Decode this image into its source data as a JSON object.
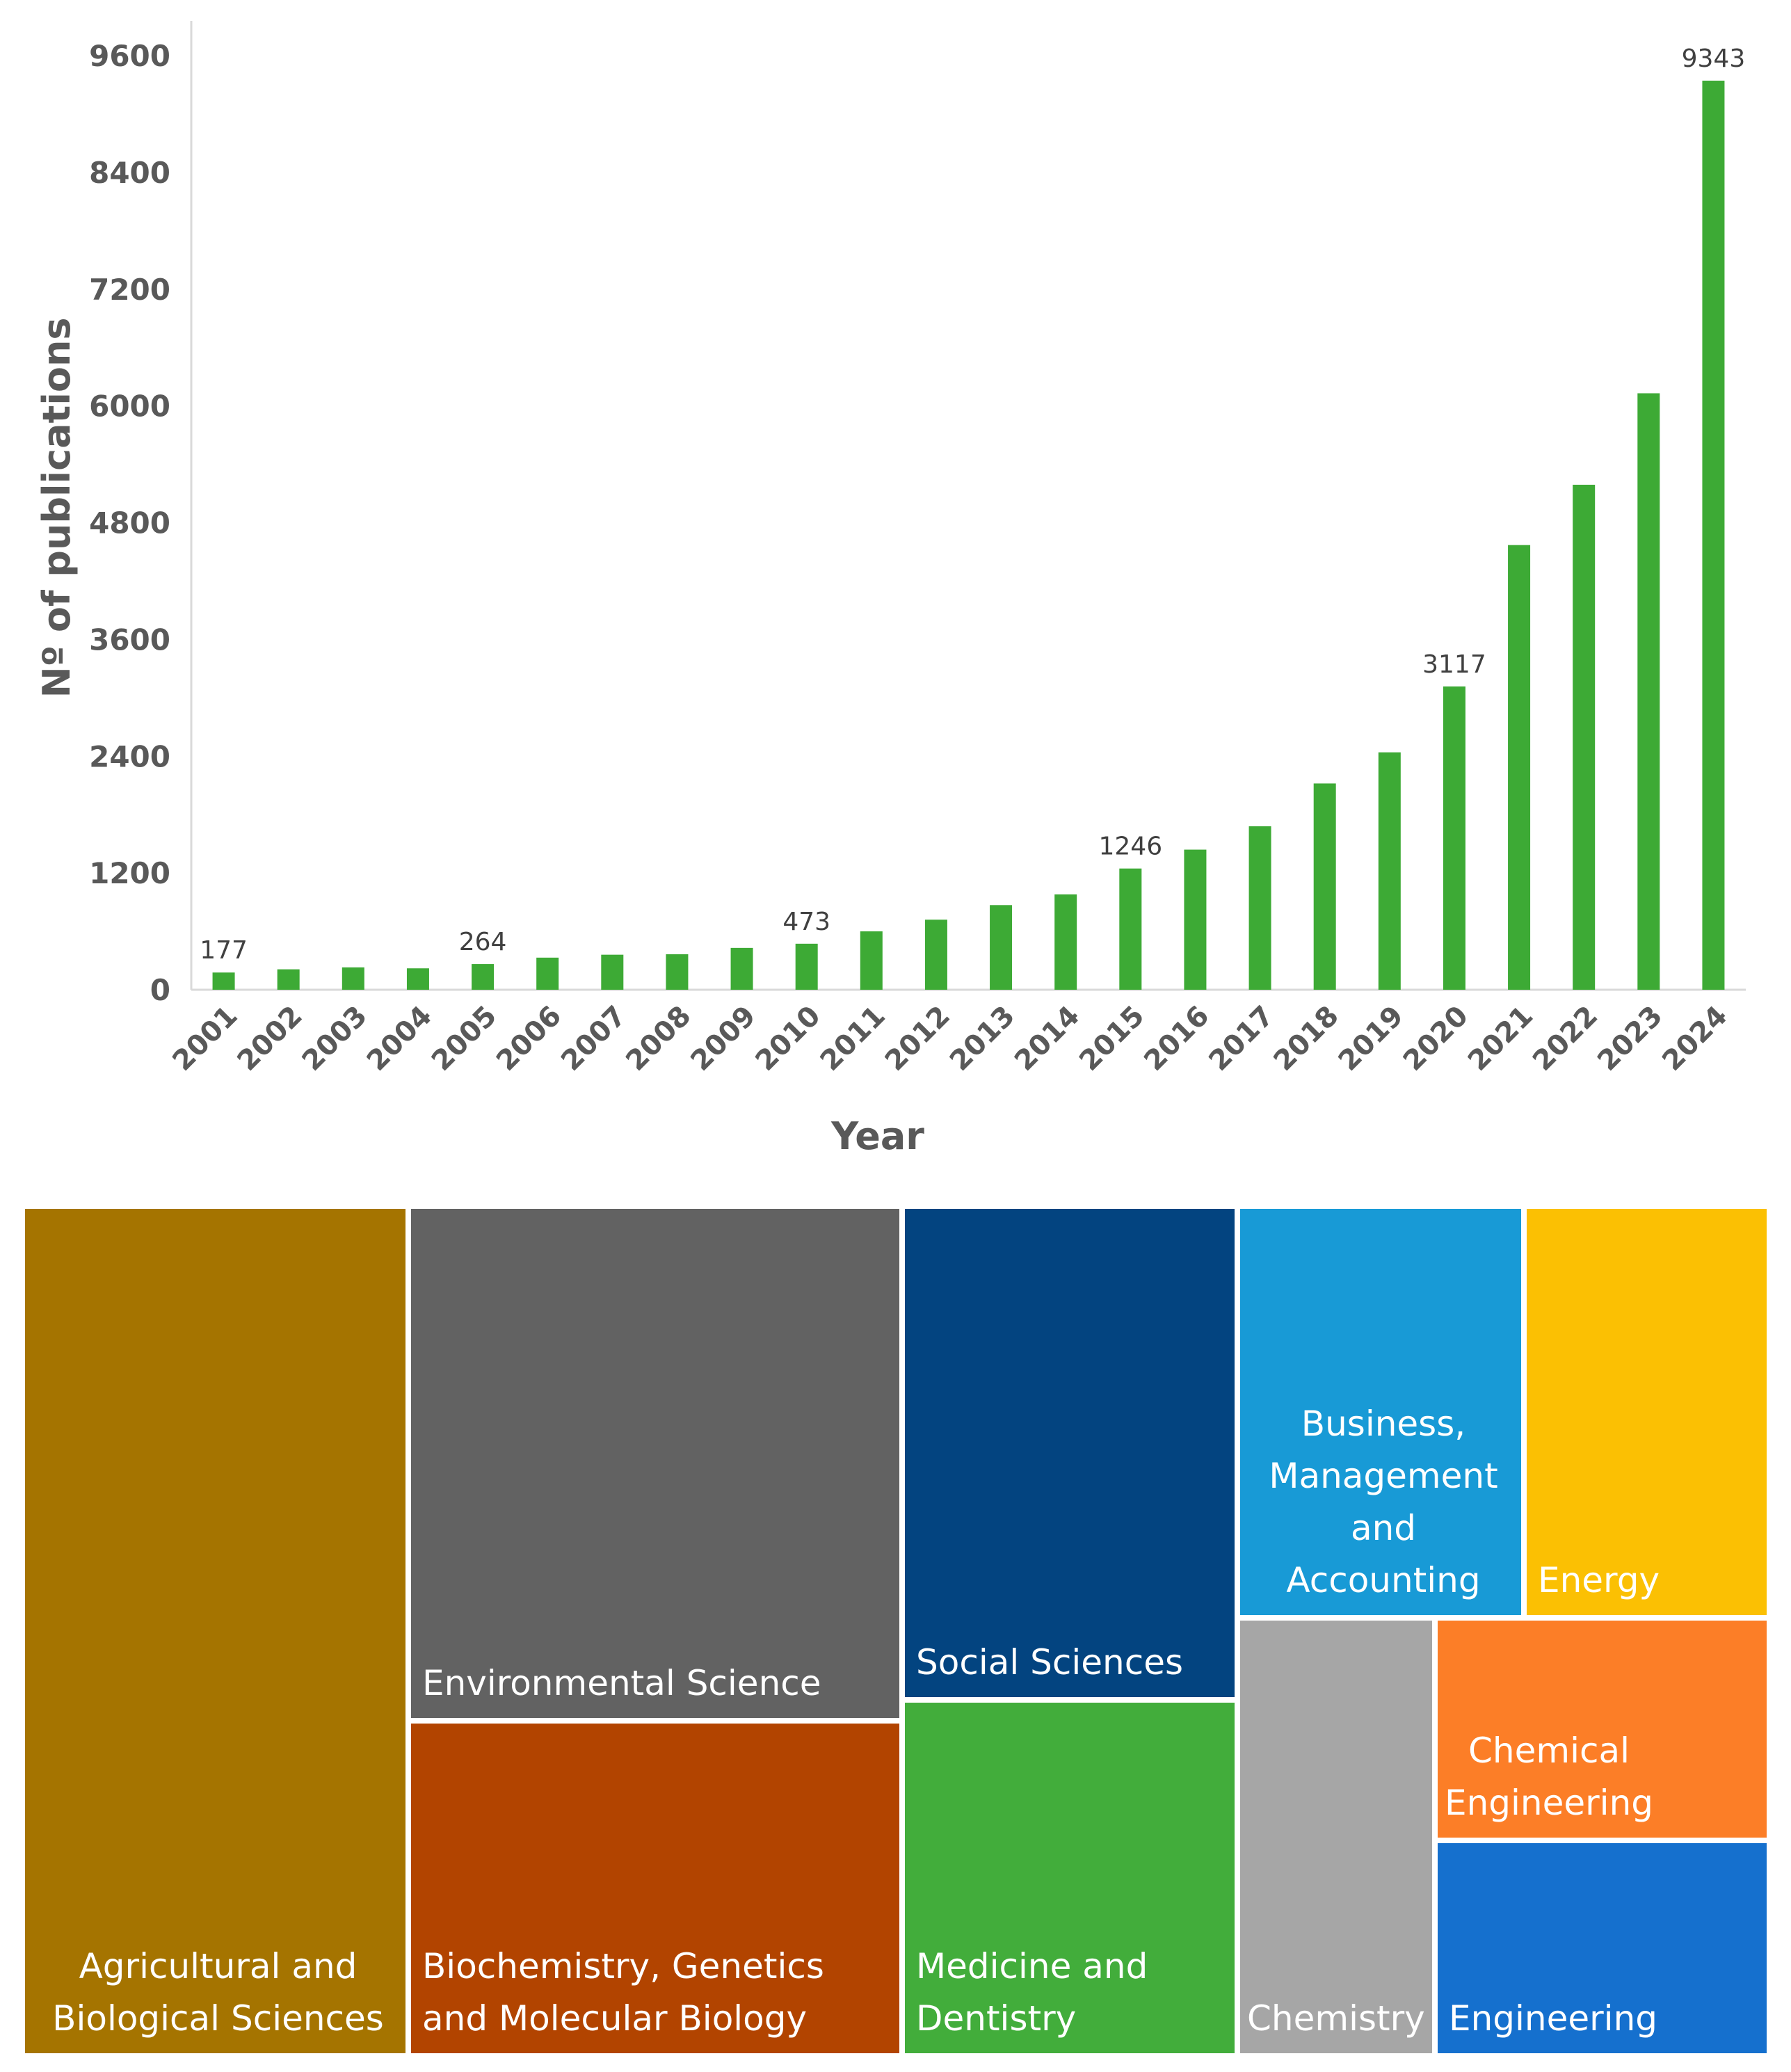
{
  "chart_data": [
    {
      "type": "bar",
      "title": "",
      "xlabel": "Year",
      "ylabel": "Nº of publications",
      "ylim": [
        0,
        9600
      ],
      "yticks": [
        0,
        1200,
        2400,
        3600,
        4800,
        6000,
        7200,
        8400,
        9600
      ],
      "ytick_labels": [
        "0",
        "1200",
        "2400",
        "3600",
        "4800",
        "6000",
        "7200",
        "8400",
        "9600"
      ],
      "categories": [
        "2001",
        "2002",
        "2003",
        "2004",
        "2005",
        "2006",
        "2007",
        "2008",
        "2009",
        "2010",
        "2011",
        "2012",
        "2013",
        "2014",
        "2015",
        "2016",
        "2017",
        "2018",
        "2019",
        "2020",
        "2021",
        "2022",
        "2023",
        "2024"
      ],
      "values": [
        177,
        210,
        230,
        220,
        264,
        330,
        360,
        365,
        430,
        473,
        600,
        720,
        870,
        980,
        1246,
        1440,
        1680,
        2120,
        2440,
        3117,
        4570,
        5190,
        6130,
        9343
      ],
      "data_labels": {
        "2001": "177",
        "2005": "264",
        "2010": "473",
        "2015": "1246",
        "2020": "3117",
        "2024": "9343"
      },
      "bar_color": "#3daa35",
      "grid": false
    },
    {
      "type": "treemap",
      "categories": [
        "Agricultural and Biological Sciences",
        "Environmental Science",
        "Biochemistry, Genetics and Molecular Biology",
        "Social Sciences",
        "Medicine and Dentistry",
        "Business, Management and Accounting",
        "Energy",
        "Chemistry",
        "Chemical Engineering",
        "Engineering"
      ],
      "labels": [
        "Agricultural and\nBiological Sciences",
        "Environmental Science",
        "Biochemistry, Genetics\nand Molecular Biology",
        "Social Sciences",
        "Medicine and\nDentistry",
        "Business,\nManagement\nand\nAccounting",
        "Energy",
        "Chemistry",
        "Chemical\nEngineering",
        "Engineering"
      ],
      "colors": [
        "#a57400",
        "#626262",
        "#b24400",
        "#034480",
        "#42ad3b",
        "#189ad6",
        "#fbc003",
        "#a6a6a6",
        "#fc7e27",
        "#1570ce"
      ]
    }
  ]
}
